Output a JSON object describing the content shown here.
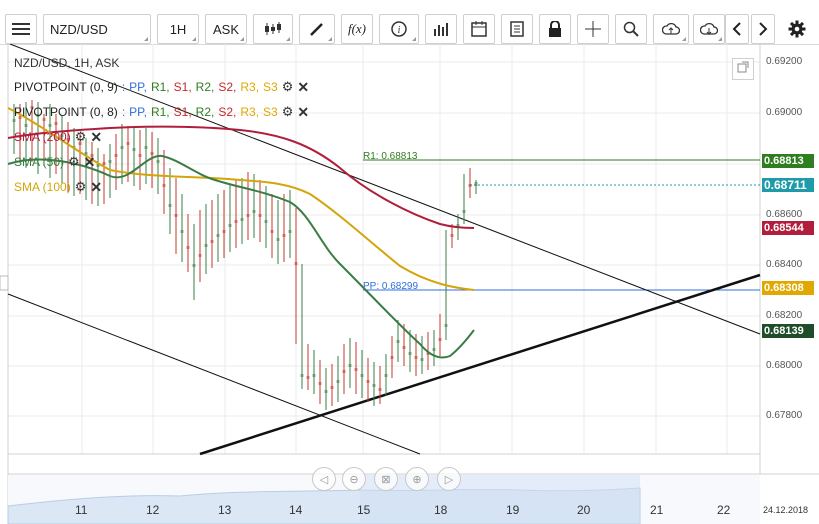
{
  "toolbar": {
    "menu_icon": "hamburger-icon",
    "symbol": "NZD/USD",
    "timeframe": "1H",
    "price_side": "ASK",
    "icons": [
      "candles-icon",
      "pen-icon",
      "function-icon",
      "info-icon",
      "bars-icon",
      "calendar-icon",
      "template-icon",
      "lock-icon",
      "crosshair-icon",
      "zoom-icon",
      "cloud-upload-icon",
      "cloud-download-icon",
      "arrow-left-icon",
      "arrow-right-icon",
      "gear-icon"
    ]
  },
  "chart": {
    "title": "NZD/USD, 1H, ASK",
    "indicators": [
      {
        "name": "PIVOTPOINT (0, 9)",
        "sep": " : ",
        "parts": [
          {
            "t": "PP",
            "c": "#2f6fdb"
          },
          {
            "t": "R1",
            "c": "#2e7d1f"
          },
          {
            "t": "S1",
            "c": "#c62828"
          },
          {
            "t": "R2",
            "c": "#2e7d1f"
          },
          {
            "t": "S2",
            "c": "#c62828"
          },
          {
            "t": "R3",
            "c": "#e0a800"
          },
          {
            "t": "S3",
            "c": "#e0a800"
          }
        ]
      },
      {
        "name": "PIVOTPOINT (0, 8)",
        "sep": " : ",
        "parts": [
          {
            "t": "PP",
            "c": "#2f6fdb"
          },
          {
            "t": "R1",
            "c": "#2e7d1f"
          },
          {
            "t": "S1",
            "c": "#c62828"
          },
          {
            "t": "R2",
            "c": "#2e7d1f"
          },
          {
            "t": "S2",
            "c": "#c62828"
          },
          {
            "t": "R3",
            "c": "#e0a800"
          },
          {
            "t": "S3",
            "c": "#e0a800"
          }
        ]
      },
      {
        "name": "SMA (200)",
        "color": "#b01e3c"
      },
      {
        "name": "SMA (50)",
        "color": "#3a7d44"
      },
      {
        "name": "SMA (100)",
        "color": "#d4a40c"
      }
    ],
    "r1_label": "R1: 0.68813",
    "pp_label": "PP: 0.68299",
    "price_tags": [
      {
        "value": "0.68813",
        "color": "#2e7d1f"
      },
      {
        "value": "0.68711",
        "color": "#1f9aa8"
      },
      {
        "value": "0.68544",
        "color": "#b01e3c"
      },
      {
        "value": "0.68308",
        "color": "#e0a800"
      },
      {
        "value": "0.68139",
        "color": "#1f4d2a"
      }
    ],
    "y_ticks": [
      "0.69200",
      "0.69000",
      "0.68600",
      "0.68400",
      "0.68200",
      "0.68000",
      "0.67800"
    ],
    "x_ticks": [
      "11",
      "12",
      "13",
      "14",
      "15",
      "18",
      "19",
      "20",
      "21",
      "22",
      "24.12.2018"
    ],
    "nav_icons": [
      "arrow-left-icon",
      "zoom-out-icon",
      "fit-icon",
      "zoom-in-icon",
      "arrow-right-icon"
    ]
  },
  "colors": {
    "up": "#3a7d44",
    "down": "#c0392b",
    "grid": "#ebebeb"
  }
}
